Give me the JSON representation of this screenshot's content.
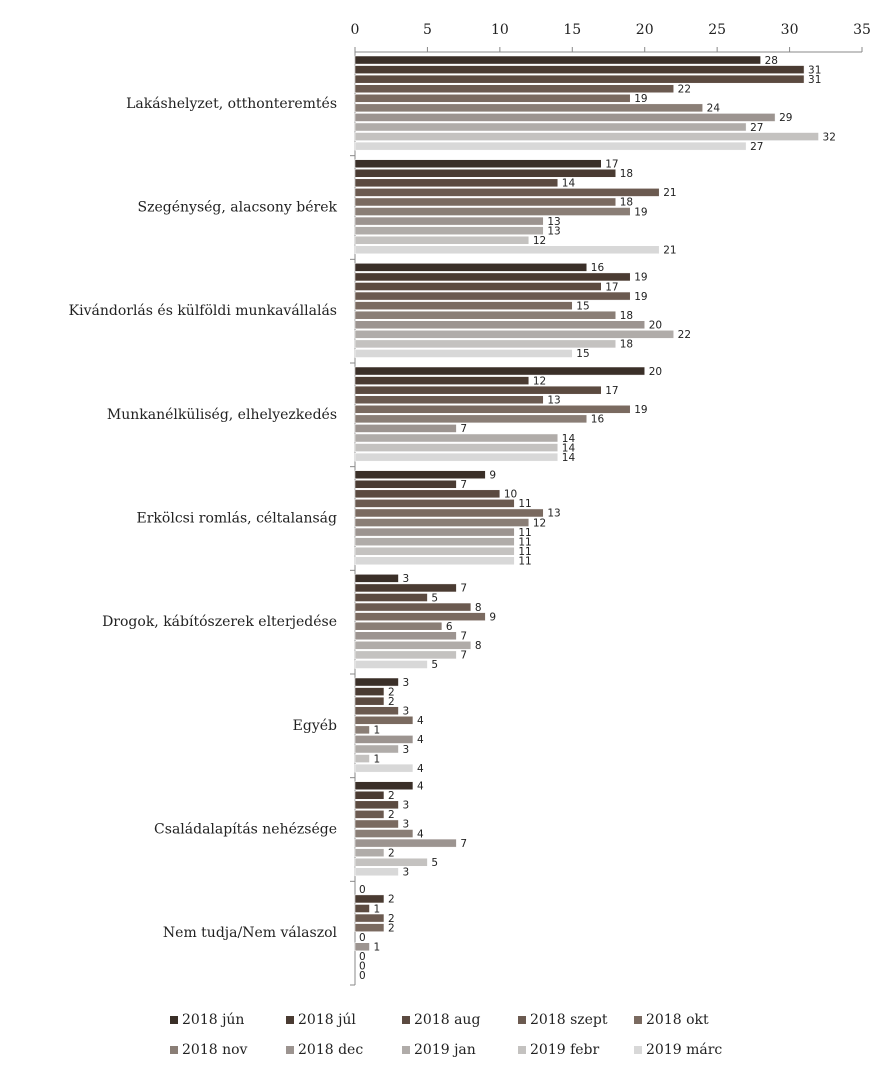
{
  "chart_data": {
    "type": "hbar",
    "categories": [
      "Lakáshelyzet, otthonteremtés",
      "Szegénység, alacsony bérek",
      "Kivándorlás és külföldi munkavállalás",
      "Munkanélküliség, elhelyezkedés",
      "Erkölcsi romlás, céltalanság",
      "Drogok, kábítószerek elterjedése",
      "Egyéb",
      "Családalapítás nehézsége",
      "Nem tudja/Nem válaszol"
    ],
    "series": [
      {
        "name": "2018 jún",
        "color": "#3a2f28",
        "values": [
          28,
          17,
          16,
          20,
          9,
          3,
          3,
          4,
          0
        ]
      },
      {
        "name": "2018 júl",
        "color": "#4a3b32",
        "values": [
          31,
          18,
          19,
          12,
          7,
          7,
          2,
          2,
          2
        ]
      },
      {
        "name": "2018 aug",
        "color": "#5b4a40",
        "values": [
          31,
          14,
          17,
          17,
          10,
          5,
          2,
          3,
          1
        ]
      },
      {
        "name": "2018 szept",
        "color": "#6b5a50",
        "values": [
          22,
          21,
          19,
          13,
          11,
          8,
          3,
          2,
          2
        ]
      },
      {
        "name": "2018 okt",
        "color": "#7a6a60",
        "values": [
          19,
          18,
          15,
          19,
          13,
          9,
          4,
          3,
          2
        ]
      },
      {
        "name": "2018 nov",
        "color": "#8a7e76",
        "values": [
          24,
          19,
          18,
          16,
          12,
          6,
          1,
          4,
          0
        ]
      },
      {
        "name": "2018 dec",
        "color": "#9c9490",
        "values": [
          29,
          13,
          20,
          7,
          11,
          7,
          4,
          7,
          1
        ]
      },
      {
        "name": "2019 jan",
        "color": "#b0aca9",
        "values": [
          27,
          13,
          22,
          14,
          11,
          8,
          3,
          2,
          0
        ]
      },
      {
        "name": "2019 febr",
        "color": "#c4c2c0",
        "values": [
          32,
          12,
          18,
          14,
          11,
          7,
          1,
          5,
          0
        ]
      },
      {
        "name": "2019 márc",
        "color": "#d8d8d8",
        "values": [
          27,
          21,
          15,
          14,
          11,
          5,
          4,
          3,
          0
        ]
      }
    ],
    "xlim": [
      0,
      35
    ],
    "xticks": [
      0,
      5,
      10,
      15,
      20,
      25,
      30,
      35
    ],
    "grid": false
  }
}
